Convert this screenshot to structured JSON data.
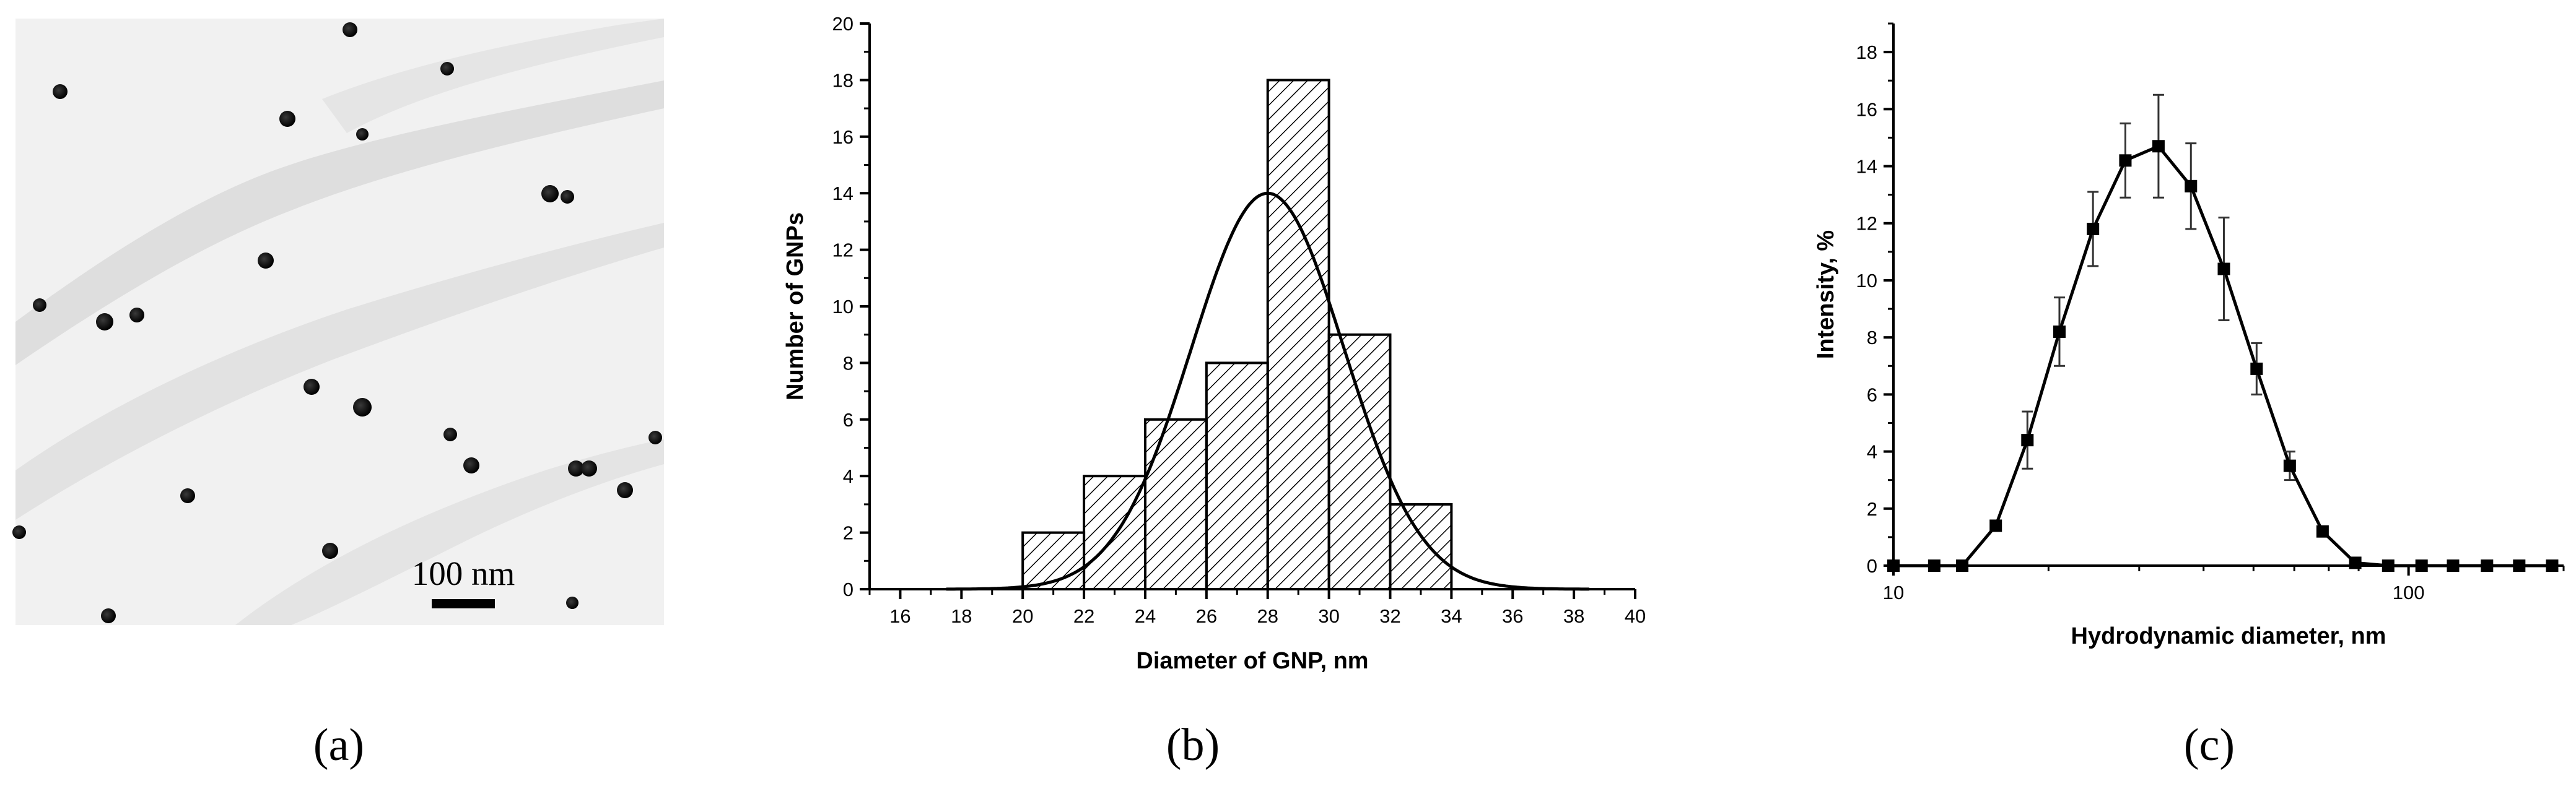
{
  "panels": {
    "a": {
      "label": "(a)",
      "scale_bar": "100 nm"
    },
    "b": {
      "label": "(b)"
    },
    "c": {
      "label": "(c)"
    }
  },
  "chart_data": [
    {
      "type": "bar",
      "panel": "b",
      "title": "",
      "xlabel": "Diameter of GNP, nm",
      "ylabel": "Number of GNPs",
      "xlim": [
        15,
        40
      ],
      "ylim": [
        0,
        20
      ],
      "xticks": [
        "16",
        "18",
        "20",
        "22",
        "24",
        "26",
        "28",
        "30",
        "32",
        "34",
        "36",
        "38",
        "40"
      ],
      "yticks": [
        "0",
        "2",
        "4",
        "6",
        "8",
        "10",
        "12",
        "14",
        "16",
        "18",
        "20"
      ],
      "bins": [
        {
          "from": 20,
          "to": 22,
          "count": 2
        },
        {
          "from": 22,
          "to": 24,
          "count": 4
        },
        {
          "from": 24,
          "to": 26,
          "count": 6
        },
        {
          "from": 26,
          "to": 28,
          "count": 8
        },
        {
          "from": 28,
          "to": 30,
          "count": 18
        },
        {
          "from": 30,
          "to": 32,
          "count": 9
        },
        {
          "from": 32,
          "to": 34,
          "count": 3
        }
      ],
      "bar_fill": "hatched",
      "fit": {
        "type": "gaussian",
        "peak_x": 28,
        "peak_y": 14,
        "sigma": 2.5
      }
    },
    {
      "type": "line",
      "panel": "c",
      "title": "",
      "xlabel": "Hydrodynamic diameter, nm",
      "ylabel": "Intensity, %",
      "xscale": "log",
      "xlim": [
        10,
        200
      ],
      "ylim": [
        0,
        19
      ],
      "xticks": [
        "10",
        "100"
      ],
      "yticks": [
        "0",
        "2",
        "4",
        "6",
        "8",
        "10",
        "12",
        "14",
        "16",
        "18"
      ],
      "x": [
        10,
        12,
        13.6,
        15.8,
        18.2,
        21.0,
        24.4,
        28.2,
        32.7,
        37.8,
        43.8,
        50.7,
        58.8,
        68.1,
        78.8,
        91.3,
        106,
        122,
        142,
        164,
        190
      ],
      "y": [
        0,
        0,
        0,
        1.4,
        4.4,
        8.2,
        11.8,
        14.2,
        14.7,
        13.3,
        10.4,
        6.9,
        3.5,
        1.2,
        0.1,
        0,
        0,
        0,
        0,
        0,
        0
      ],
      "y_error": [
        0,
        0,
        0,
        0,
        1.0,
        1.2,
        1.3,
        1.3,
        1.8,
        1.5,
        1.8,
        0.9,
        0.5,
        0,
        0,
        0,
        0,
        0,
        0,
        0,
        0
      ],
      "marker": "square"
    }
  ]
}
